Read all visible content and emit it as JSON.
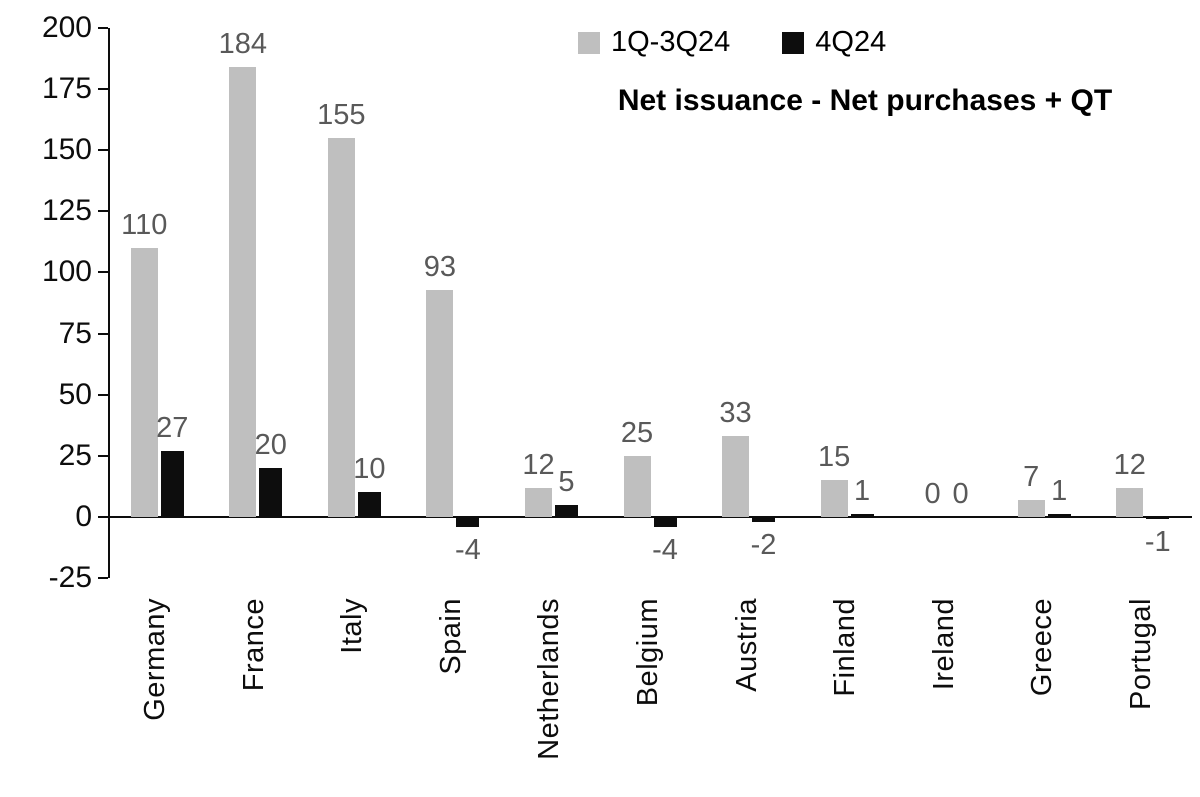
{
  "chart_data": {
    "type": "bar",
    "title": "Net issuance - Net purchases + QT",
    "categories": [
      "Germany",
      "France",
      "Italy",
      "Spain",
      "Netherlands",
      "Belgium",
      "Austria",
      "Finland",
      "Ireland",
      "Greece",
      "Portugal"
    ],
    "series": [
      {
        "name": "1Q-3Q24",
        "color": "#bfbfbf",
        "values": [
          110,
          184,
          155,
          93,
          12,
          25,
          33,
          15,
          0,
          7,
          12
        ]
      },
      {
        "name": "4Q24",
        "color": "#0d0d0d",
        "values": [
          27,
          20,
          10,
          -4,
          5,
          -4,
          -2,
          1,
          0,
          1,
          -1
        ]
      }
    ],
    "ylim": [
      -25,
      200
    ],
    "yticks": [
      200,
      175,
      150,
      125,
      100,
      75,
      50,
      25,
      0,
      -25
    ],
    "grid": false,
    "legend_position": "top-right",
    "data_labels": true
  },
  "colors": {
    "data_label": "#595959",
    "axis": "#0d0d0d",
    "background": "#ffffff"
  }
}
